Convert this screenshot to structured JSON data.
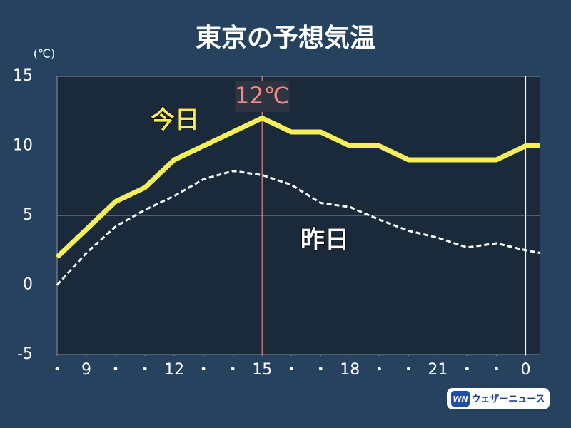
{
  "chart_data": {
    "type": "line",
    "title": "東京の予想気温",
    "y_unit": "(℃)",
    "x": [
      8,
      9,
      10,
      11,
      12,
      13,
      14,
      15,
      16,
      17,
      18,
      19,
      20,
      21,
      22,
      23,
      24,
      24.5
    ],
    "series": [
      {
        "name": "今日",
        "color": "#f5f05a",
        "dashed": false,
        "values": [
          2,
          4,
          6,
          7,
          9,
          10,
          11,
          12,
          11,
          11,
          10,
          10,
          9,
          9,
          9,
          9,
          10,
          10
        ]
      },
      {
        "name": "昨日",
        "color": "#ffffff",
        "dashed": true,
        "values": [
          0,
          2.3,
          4.2,
          5.4,
          6.4,
          7.6,
          8.2,
          7.9,
          7.2,
          5.9,
          5.6,
          4.7,
          3.9,
          3.4,
          2.7,
          3.0,
          2.5,
          2.3
        ]
      }
    ],
    "xlim": [
      8,
      24.5
    ],
    "xticks": [
      {
        "value": 8,
        "label": "・"
      },
      9,
      {
        "value": 10,
        "label": "・"
      },
      {
        "value": 11,
        "label": "・"
      },
      12,
      {
        "value": 13,
        "label": "・"
      },
      {
        "value": 14,
        "label": "・"
      },
      15,
      {
        "value": 16,
        "label": "・"
      },
      {
        "value": 17,
        "label": "・"
      },
      18,
      {
        "value": 19,
        "label": "・"
      },
      {
        "value": 20,
        "label": "・"
      },
      21,
      {
        "value": 22,
        "label": "・"
      },
      {
        "value": 23,
        "label": "・"
      },
      {
        "value": 24,
        "label": "0"
      }
    ],
    "ylim": [
      -5,
      15
    ],
    "yticks": [
      -5,
      0,
      5,
      10,
      15
    ],
    "grid": true,
    "annotation": {
      "text": "12℃",
      "x": 15,
      "color": "#f08a8a"
    },
    "vlines": [
      {
        "x": 15,
        "color": "#d98a8a"
      },
      {
        "x": 24,
        "color": "#ffffff"
      }
    ],
    "logo": {
      "mark": "WN",
      "text": "ウェザーニュース"
    }
  }
}
